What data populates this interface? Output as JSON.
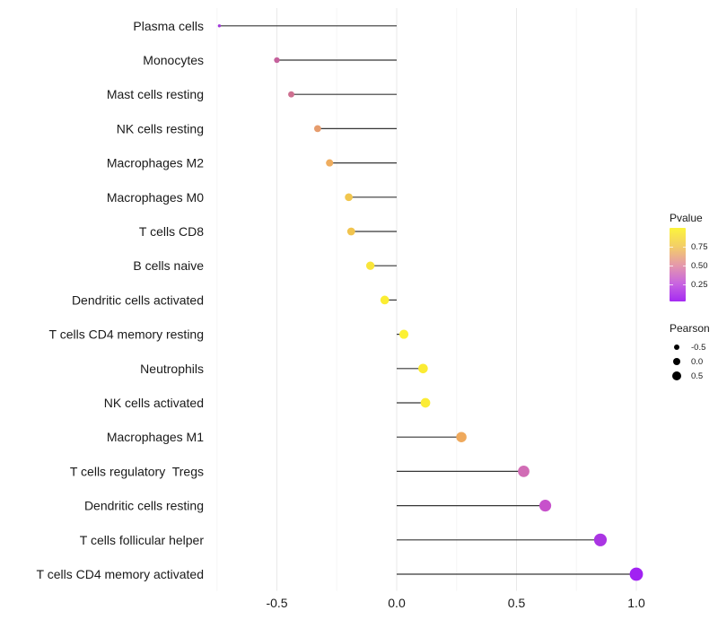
{
  "chart_data": {
    "type": "lollipop",
    "title": "",
    "xlabel": "",
    "ylabel": "",
    "x_axis": {
      "range": [
        -0.77,
        1.05
      ],
      "major_ticks": [
        {
          "value": -0.5,
          "label": "-0.5"
        },
        {
          "value": 0.0,
          "label": "0.0"
        },
        {
          "value": 0.5,
          "label": "0.5"
        },
        {
          "value": 1.0,
          "label": "1.0"
        }
      ],
      "minor_ticks": [
        -0.75,
        -0.25,
        0.25,
        0.75
      ]
    },
    "points": [
      {
        "label": "Plasma cells",
        "pearson": -0.74,
        "color": "#A136D9"
      },
      {
        "label": "Monocytes",
        "pearson": -0.5,
        "color": "#C5619C"
      },
      {
        "label": "Mast cells resting",
        "pearson": -0.44,
        "color": "#CE7090"
      },
      {
        "label": "NK cells resting",
        "pearson": -0.33,
        "color": "#E69C6D"
      },
      {
        "label": "Macrophages M2",
        "pearson": -0.28,
        "color": "#EFAD5F"
      },
      {
        "label": "Macrophages M0",
        "pearson": -0.2,
        "color": "#F1C64E"
      },
      {
        "label": "T cells CD8",
        "pearson": -0.19,
        "color": "#F1C44E"
      },
      {
        "label": "B cells naive",
        "pearson": -0.11,
        "color": "#F9E53A"
      },
      {
        "label": "Dendritic cells activated",
        "pearson": -0.05,
        "color": "#FBED33"
      },
      {
        "label": "T cells CD4 memory resting",
        "pearson": 0.03,
        "color": "#FCF133"
      },
      {
        "label": "Neutrophils",
        "pearson": 0.11,
        "color": "#FBEB33"
      },
      {
        "label": "NK cells activated",
        "pearson": 0.12,
        "color": "#FBEC36"
      },
      {
        "label": "Macrophages M1",
        "pearson": 0.27,
        "color": "#EFA95C"
      },
      {
        "label": "T cells regulatory  Tregs",
        "pearson": 0.53,
        "color": "#D16CB5"
      },
      {
        "label": "Dendritic cells resting",
        "pearson": 0.62,
        "color": "#C751CB"
      },
      {
        "label": "T cells follicular helper",
        "pearson": 0.85,
        "color": "#AA35E3"
      },
      {
        "label": "T cells CD4 memory activated",
        "pearson": 1.0,
        "color": "#A122F2"
      }
    ],
    "legend": {
      "pvalue": {
        "title": "Pvalue",
        "range": [
          0,
          1
        ],
        "ticks": [
          {
            "value": 0.75,
            "label": "0.75"
          },
          {
            "value": 0.5,
            "label": "0.50"
          },
          {
            "value": 0.25,
            "label": "0.25"
          }
        ],
        "gradient": [
          {
            "value": 1.0,
            "color": "#FCF43C"
          },
          {
            "value": 0.75,
            "color": "#F3CE67"
          },
          {
            "value": 0.5,
            "color": "#E59AA9"
          },
          {
            "value": 0.25,
            "color": "#C966DF"
          },
          {
            "value": 0.0,
            "color": "#A52BF2"
          }
        ]
      },
      "pearson": {
        "title": "Pearson",
        "items": [
          {
            "value": -0.5,
            "label": "-0.5"
          },
          {
            "value": 0.0,
            "label": "0.0"
          },
          {
            "value": 0.5,
            "label": "0.5"
          }
        ]
      }
    },
    "colors": {
      "background": "#FFFFFF",
      "stem": "#363636",
      "grid_major": "#E9E9E9",
      "grid_minor": "#F5F5F5",
      "axis_text": "#1A1A1A",
      "legend_dot": "#000000"
    }
  }
}
